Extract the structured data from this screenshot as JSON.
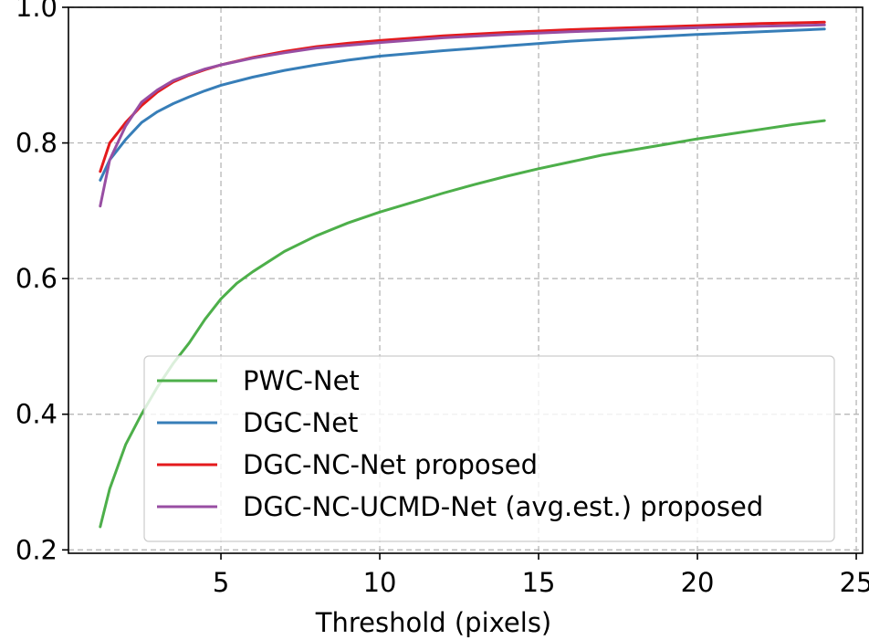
{
  "chart_data": {
    "type": "line",
    "xlabel": "Threshold (pixels)",
    "ylabel": "",
    "xlim": [
      0.2,
      25.2
    ],
    "ylim": [
      0.195,
      1.0
    ],
    "xticks": [
      5,
      10,
      15,
      20,
      25
    ],
    "yticks": [
      0.2,
      0.4,
      0.6,
      0.8,
      1.0
    ],
    "ytick_labels": [
      "0.2",
      "0.4",
      "0.6",
      "0.8",
      "1.0"
    ],
    "grid": true,
    "legend_position": "lower-right",
    "series": [
      {
        "name": "PWC-Net",
        "color": "#4daf4a",
        "x": [
          1.2,
          1.5,
          2,
          2.5,
          3,
          3.5,
          4,
          4.5,
          5,
          5.5,
          6,
          7,
          8,
          9,
          10,
          11,
          12,
          13,
          14,
          15,
          16,
          17,
          18,
          19,
          20,
          21,
          22,
          23,
          24
        ],
        "y": [
          0.234,
          0.29,
          0.355,
          0.4,
          0.44,
          0.475,
          0.505,
          0.54,
          0.57,
          0.593,
          0.61,
          0.64,
          0.663,
          0.682,
          0.698,
          0.712,
          0.726,
          0.739,
          0.751,
          0.762,
          0.772,
          0.782,
          0.79,
          0.798,
          0.806,
          0.813,
          0.82,
          0.827,
          0.833
        ]
      },
      {
        "name": "DGC-Net",
        "color": "#377eb8",
        "x": [
          1.2,
          1.5,
          2,
          2.5,
          3,
          3.5,
          4,
          4.5,
          5,
          6,
          7,
          8,
          9,
          10,
          12,
          14,
          16,
          18,
          20,
          22,
          24
        ],
        "y": [
          0.745,
          0.775,
          0.805,
          0.83,
          0.846,
          0.858,
          0.868,
          0.877,
          0.885,
          0.897,
          0.907,
          0.915,
          0.922,
          0.928,
          0.936,
          0.943,
          0.95,
          0.955,
          0.96,
          0.964,
          0.968
        ]
      },
      {
        "name": "DGC-NC-Net proposed",
        "color": "#e41a1c",
        "x": [
          1.2,
          1.5,
          2,
          2.5,
          3,
          3.5,
          4,
          4.5,
          5,
          6,
          7,
          8,
          9,
          10,
          12,
          14,
          16,
          18,
          20,
          22,
          24
        ],
        "y": [
          0.758,
          0.8,
          0.83,
          0.855,
          0.875,
          0.89,
          0.9,
          0.908,
          0.915,
          0.926,
          0.935,
          0.942,
          0.947,
          0.951,
          0.958,
          0.963,
          0.967,
          0.97,
          0.973,
          0.976,
          0.978
        ]
      },
      {
        "name": "DGC-NC-UCMD-Net (avg.est.) proposed",
        "color": "#984ea3",
        "x": [
          1.2,
          1.5,
          2,
          2.5,
          3,
          3.5,
          4,
          4.5,
          5,
          6,
          7,
          8,
          9,
          10,
          12,
          14,
          16,
          18,
          20,
          22,
          24
        ],
        "y": [
          0.707,
          0.775,
          0.825,
          0.86,
          0.878,
          0.892,
          0.901,
          0.909,
          0.915,
          0.925,
          0.933,
          0.94,
          0.944,
          0.948,
          0.955,
          0.96,
          0.964,
          0.967,
          0.97,
          0.972,
          0.974
        ]
      }
    ]
  }
}
